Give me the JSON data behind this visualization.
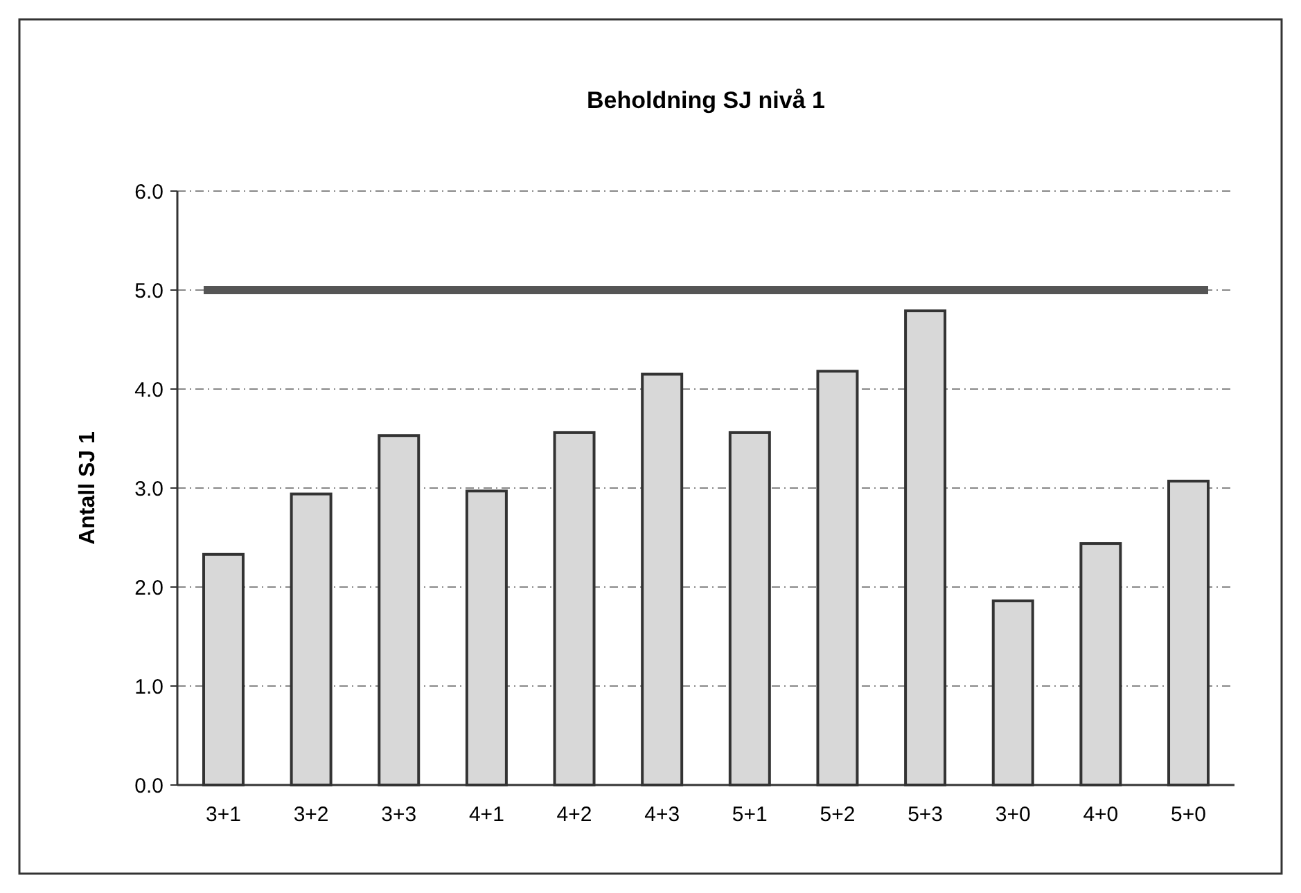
{
  "chart_data": {
    "type": "bar",
    "title": "Beholdning SJ nivå 1",
    "ylabel": "Antall SJ 1",
    "categories": [
      "3+1",
      "3+2",
      "3+3",
      "4+1",
      "4+2",
      "4+3",
      "5+1",
      "5+2",
      "5+3",
      "3+0",
      "4+0",
      "5+0"
    ],
    "values": [
      2.33,
      2.94,
      3.53,
      2.97,
      3.56,
      4.15,
      3.56,
      4.18,
      4.79,
      1.86,
      2.44,
      3.07
    ],
    "color": "#d8d8d8",
    "ylim": [
      0,
      6
    ],
    "yticks": [
      {
        "value": 0,
        "label": "0.0"
      },
      {
        "value": 1,
        "label": "1.0"
      },
      {
        "value": 2,
        "label": "2.0"
      },
      {
        "value": 3,
        "label": "3.0"
      },
      {
        "value": 4,
        "label": "4.0"
      },
      {
        "value": 5,
        "label": "5.0"
      },
      {
        "value": 6,
        "label": "6.0"
      }
    ],
    "grid": "y",
    "ref_lines": [
      {
        "axis": "y",
        "value": 5,
        "color": "#555555"
      }
    ]
  }
}
